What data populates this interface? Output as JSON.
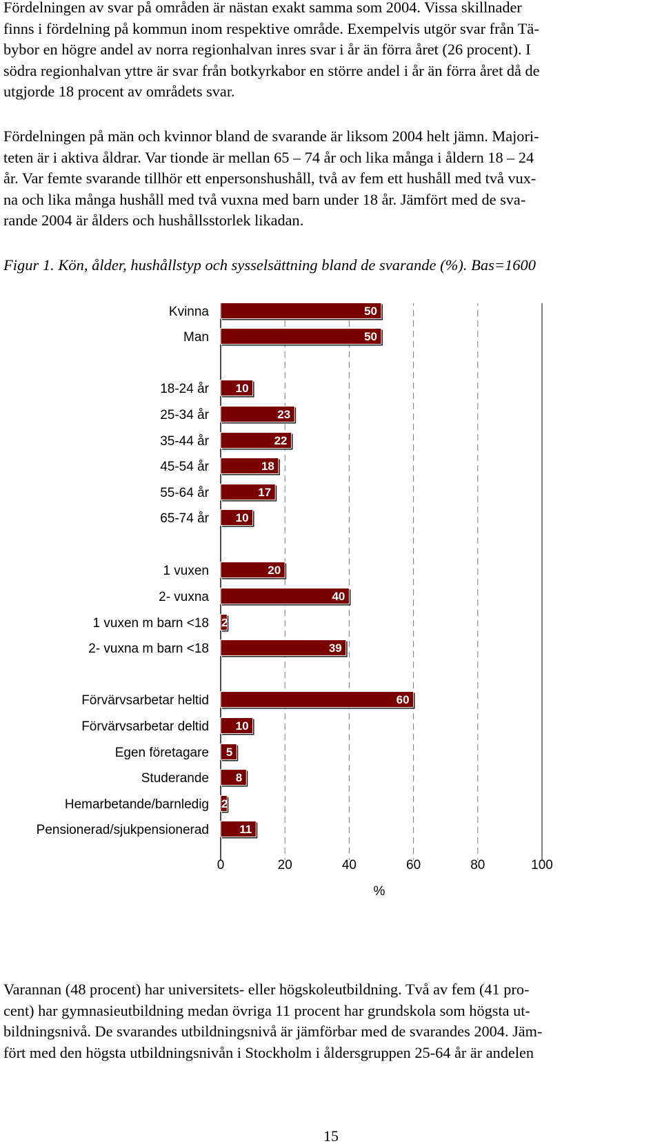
{
  "text_top": {
    "paragraph1": [
      "Fördelningen av svar på områden är nästan exakt samma som 2004. Vissa skillnader",
      "finns i fördelning på kommun inom respektive område. Exempelvis utgör svar från Tä-",
      "bybor en högre andel av norra regionhalvan inres svar i år än förra året (26 procent). I",
      "södra regionhalvan yttre är svar från botkyrkabor en större andel i år än förra året då de",
      "utgjorde 18 procent av områdets svar."
    ],
    "paragraph2": [
      "Fördelningen på män och kvinnor bland de svarande är liksom 2004 helt jämn. Majori-",
      "teten är i aktiva åldrar. Var tionde är mellan 65 – 74 år och lika många i åldern 18 – 24",
      "år. Var femte svarande tillhör ett enpersonshushåll, två av fem ett hushåll med två vux-",
      "na och lika många hushåll med två vuxna med barn under 18 år. Jämfört med de sva-",
      "rande 2004 är ålders och hushållsstorlek likadan."
    ]
  },
  "caption": "Figur 1. Kön, ålder, hushållstyp och sysselsättning bland de svarande (%). Bas=1600",
  "chart_data": {
    "type": "bar",
    "orientation": "horizontal",
    "xlabel": "%",
    "xlim": [
      0,
      100
    ],
    "xticks": [
      0,
      20,
      40,
      60,
      80,
      100
    ],
    "grid": "vertical dashed",
    "bar_color": "#7a0000",
    "groups": [
      {
        "categories": [
          "Kvinna",
          "Man"
        ],
        "values": [
          50,
          50
        ]
      },
      {
        "categories": [
          "18-24 år",
          "25-34 år",
          "35-44 år",
          "45-54 år",
          "55-64 år",
          "65-74 år"
        ],
        "values": [
          10,
          23,
          22,
          18,
          17,
          10
        ]
      },
      {
        "categories": [
          "1 vuxen",
          "2- vuxna",
          "1 vuxen m barn <18",
          "2- vuxna m barn <18"
        ],
        "values": [
          20,
          40,
          2,
          39
        ]
      },
      {
        "categories": [
          "Förvärvsarbetar heltid",
          "Förvärvsarbetar deltid",
          "Egen företagare",
          "Studerande",
          "Hemarbetande/barnledig",
          "Pensionerad/sjukpensionerad"
        ],
        "values": [
          60,
          10,
          5,
          8,
          2,
          11
        ]
      }
    ]
  },
  "text_bottom": {
    "paragraph3": [
      "Varannan (48 procent) har universitets- eller högskoleutbildning. Två av fem (41 pro-",
      "cent) har gymnasieutbildning medan övriga 11 procent har grundskola som högsta ut-",
      "bildningsnivå. De svarandes utbildningsnivå är jämförbar med de svarandes 2004. Jäm-",
      "fört med den högsta utbildningsnivån i Stockholm i åldersgruppen 25-64 år är andelen"
    ]
  },
  "page_number": "15"
}
